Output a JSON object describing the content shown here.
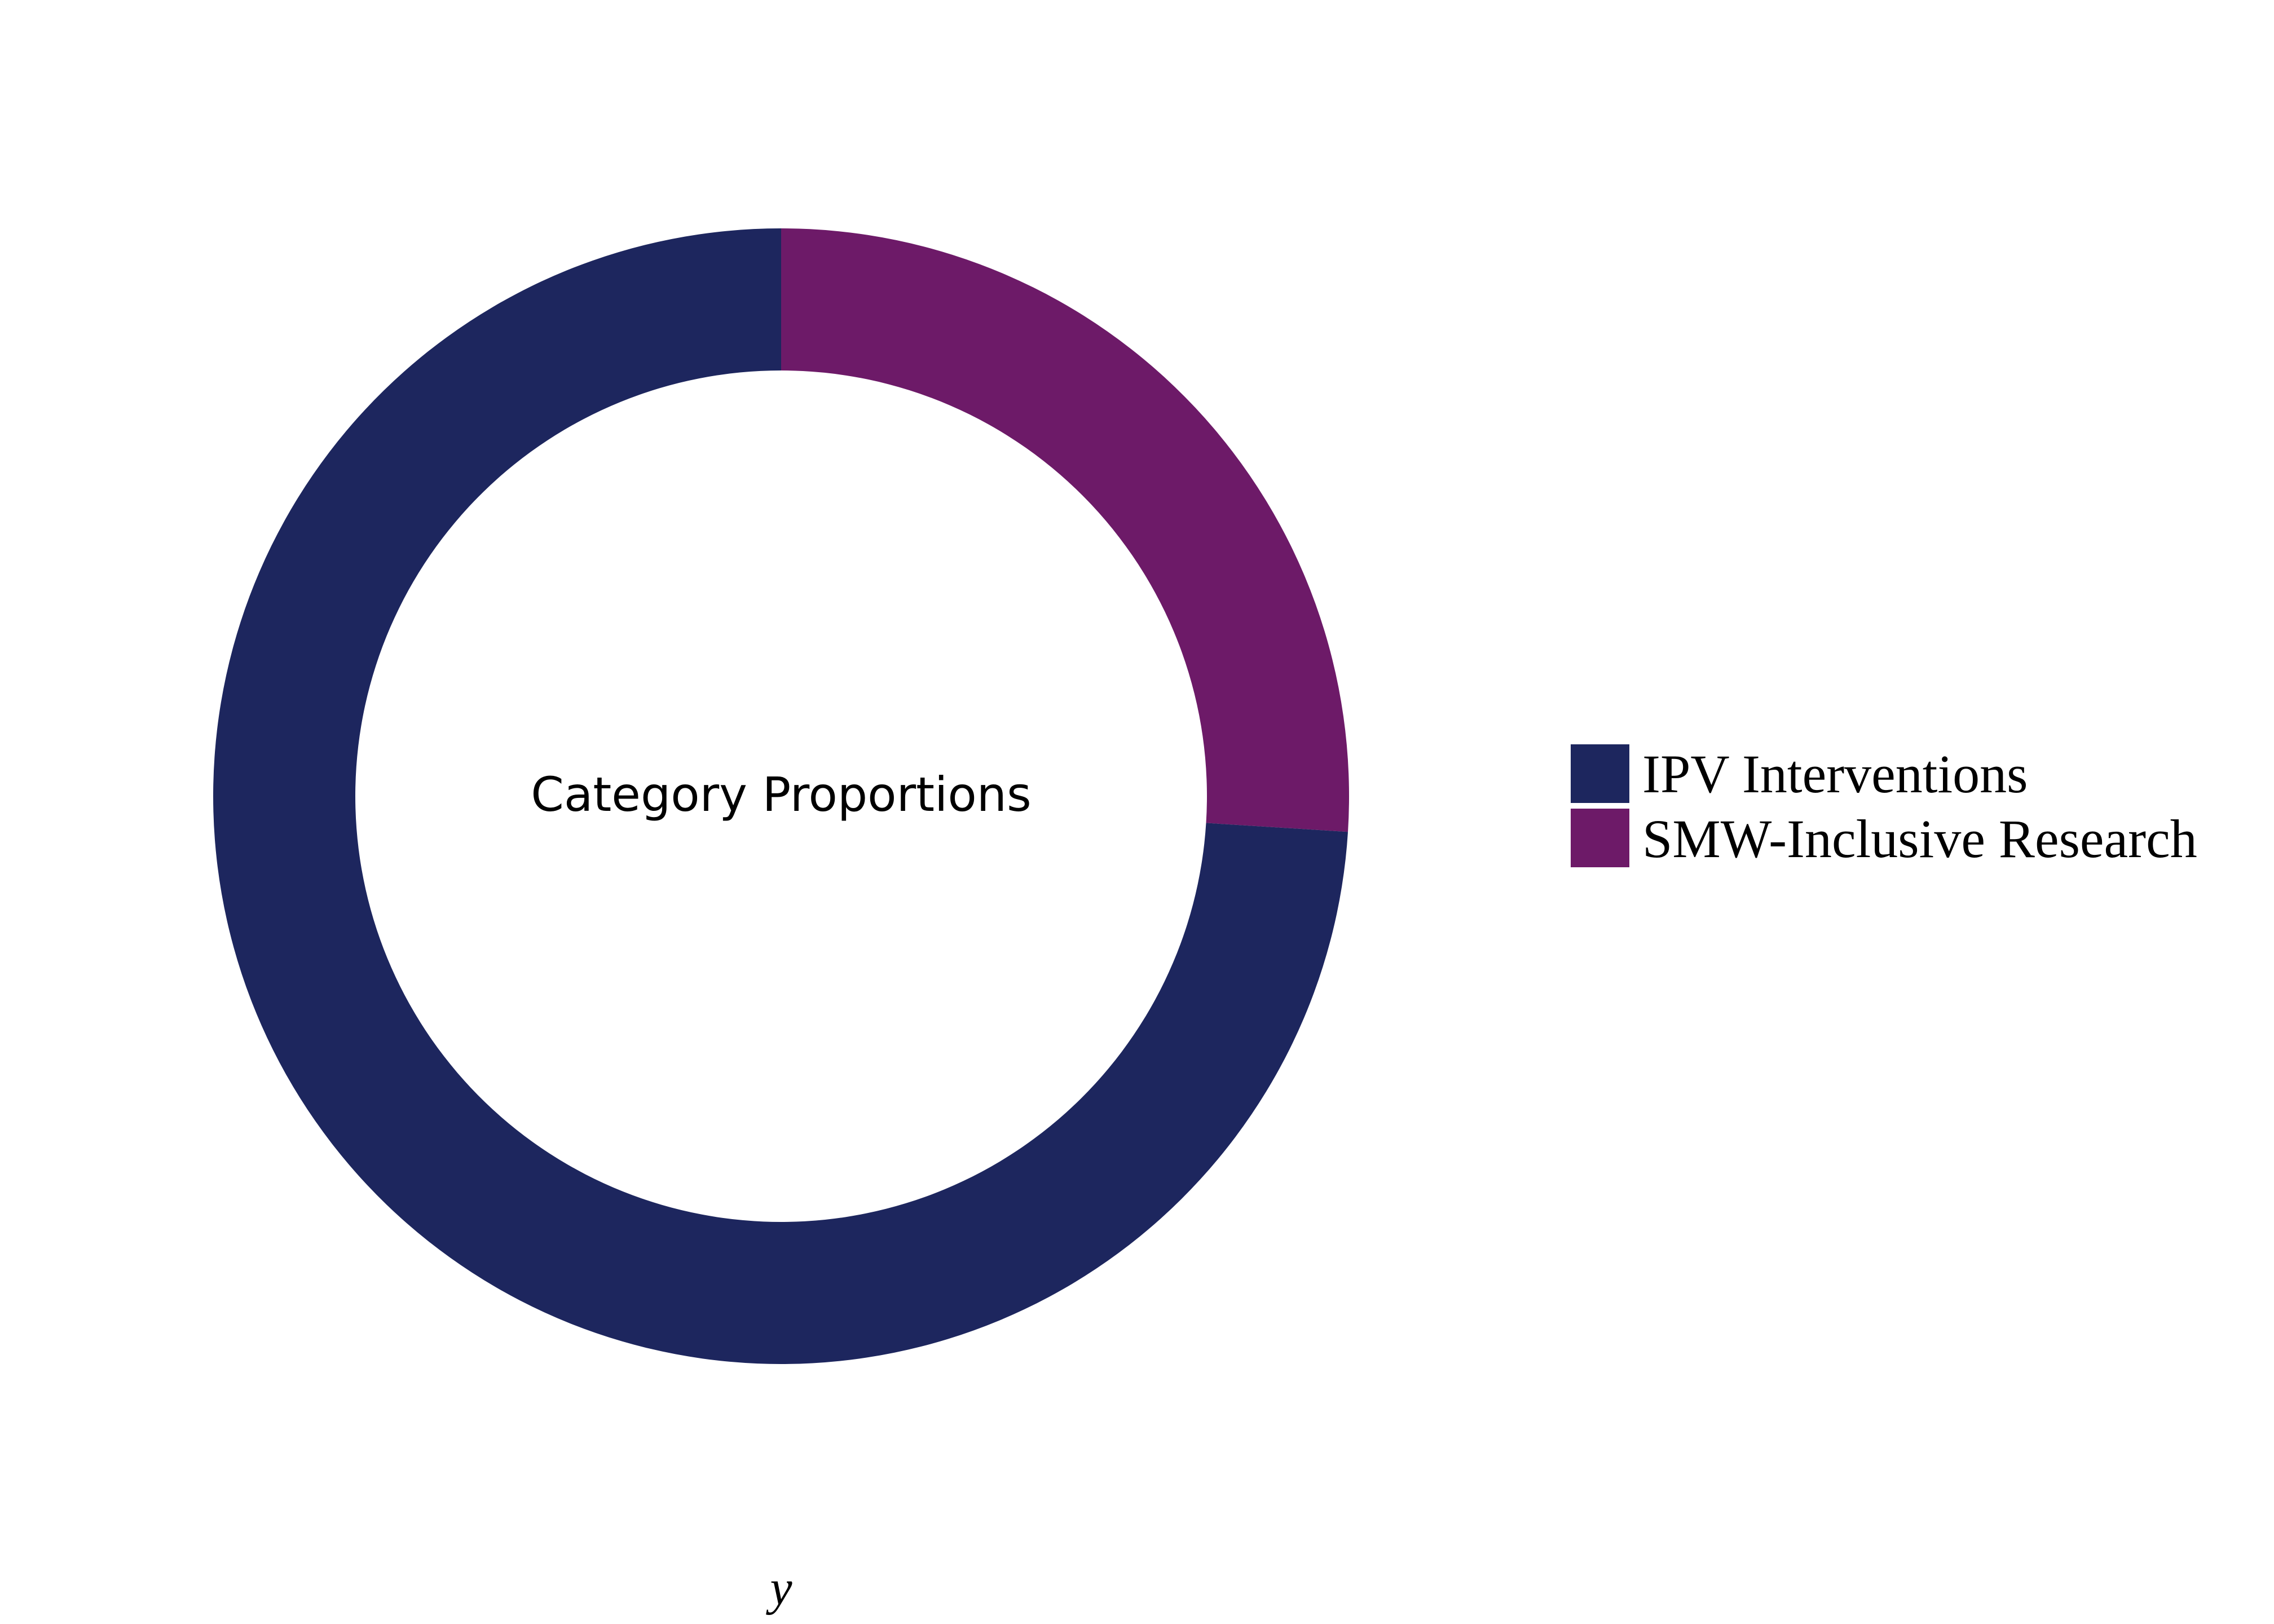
{
  "chart_data": {
    "type": "pie",
    "donut": true,
    "center_label": "Category Proportions",
    "xlabel": "y",
    "categories": [
      "SMW-Inclusive Research",
      "IPV Interventions"
    ],
    "values": [
      26,
      74
    ],
    "colors": [
      "#6d1a68",
      "#1d265e"
    ],
    "legend": {
      "placement": "right",
      "entries": [
        {
          "label": "IPV Interventions",
          "color": "#1d265e"
        },
        {
          "label": "SMW-Inclusive Research",
          "color": "#6d1a68"
        }
      ]
    }
  }
}
